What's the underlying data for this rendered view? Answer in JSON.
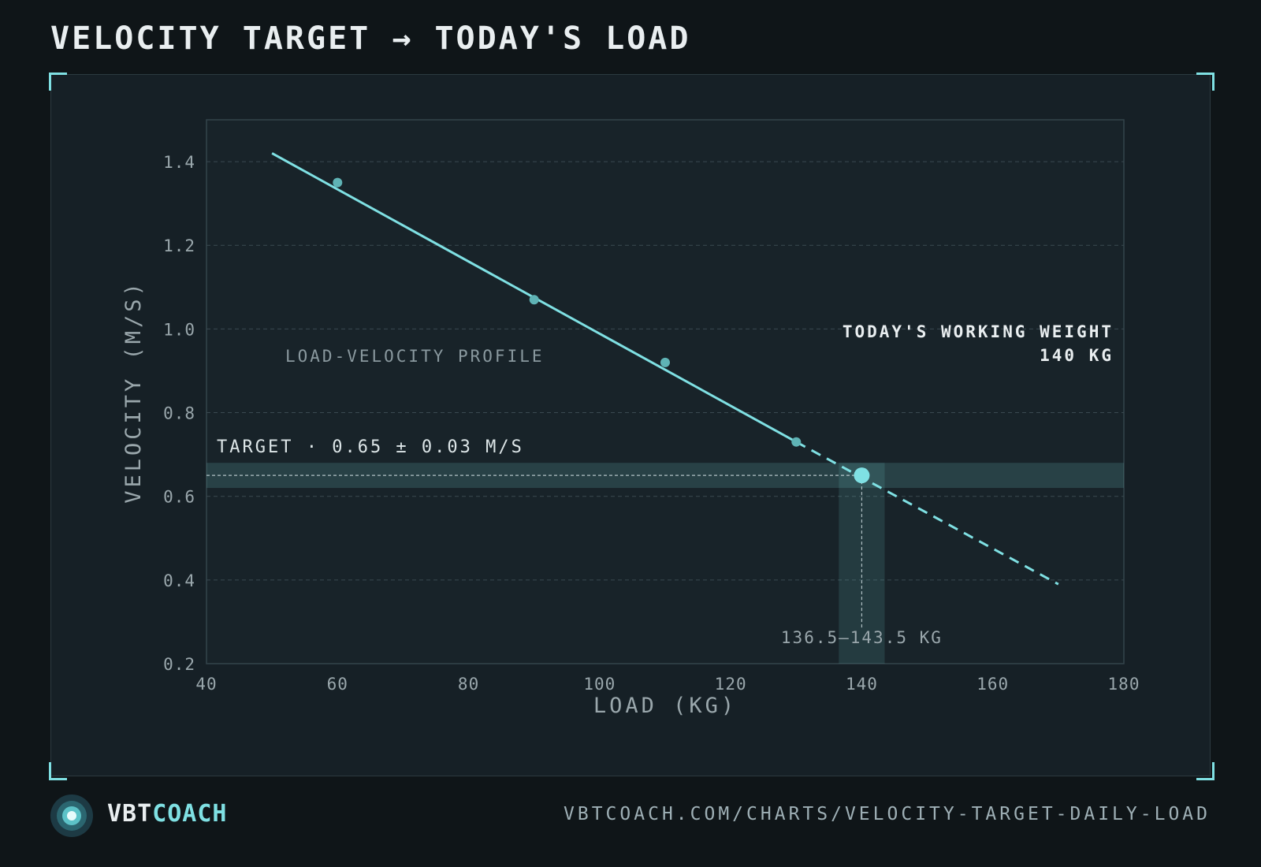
{
  "page": {
    "title": "VELOCITY TARGET → TODAY'S LOAD",
    "brand_part1": "VBT",
    "brand_part2": "COACH",
    "url": "VBTCOACH.COM/CHARTS/VELOCITY-TARGET-DAILY-LOAD",
    "colors": {
      "accent": "#7fe0e3",
      "background": "#0f1518",
      "panel": "#162026",
      "text": "#e8eef0",
      "muted": "#9aa7ac"
    }
  },
  "chart_data": {
    "type": "scatter",
    "title": "VELOCITY TARGET → TODAY'S LOAD",
    "xlabel": "LOAD (KG)",
    "ylabel": "VELOCITY (M/S)",
    "xlim": [
      40,
      180
    ],
    "ylim": [
      0.2,
      1.5
    ],
    "xticks": [
      40,
      60,
      80,
      100,
      120,
      140,
      160,
      180
    ],
    "yticks": [
      0.2,
      0.4,
      0.6,
      0.8,
      1.0,
      1.2,
      1.4
    ],
    "ytick_labels": [
      "0.2",
      "0.4",
      "0.6",
      "0.8",
      "1.0",
      "1.2",
      "1.4"
    ],
    "grid": "horizontal dashed",
    "points": [
      {
        "x": 60,
        "y": 1.35
      },
      {
        "x": 90,
        "y": 1.07
      },
      {
        "x": 110,
        "y": 0.92
      },
      {
        "x": 130,
        "y": 0.73
      }
    ],
    "fit_line": {
      "x": [
        50,
        130
      ],
      "y": [
        1.42,
        0.73
      ]
    },
    "extrapolation": {
      "x": [
        130,
        170
      ],
      "y": [
        0.73,
        0.39
      ]
    },
    "target": {
      "velocity": 0.65,
      "tolerance": 0.03,
      "label": "TARGET · 0.65 ± 0.03 M/S"
    },
    "load_band": {
      "min": 136.5,
      "max": 143.5,
      "label": "136.5–143.5 KG"
    },
    "working_point": {
      "x": 140,
      "y": 0.65
    },
    "annotations": {
      "profile_label": "LOAD-VELOCITY PROFILE",
      "working_weight_label": "TODAY'S WORKING WEIGHT",
      "working_weight_value": "140 KG"
    }
  }
}
